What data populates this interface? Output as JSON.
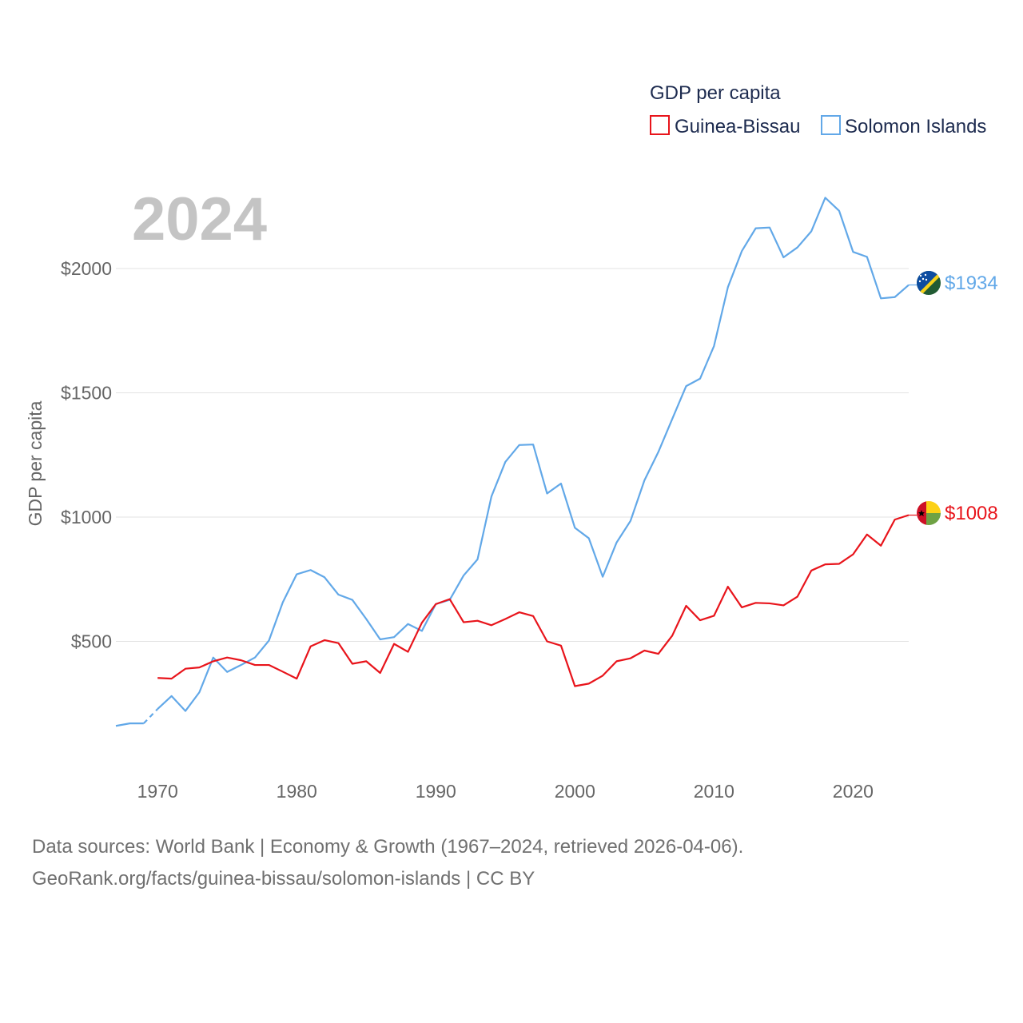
{
  "chart_data": {
    "type": "line",
    "year_overlay": "2024",
    "legend": {
      "title": "GDP per capita",
      "entries": [
        "Guinea-Bissau",
        "Solomon Islands"
      ]
    },
    "ylabel": "GDP per capita",
    "xlabel": "",
    "xlim": [
      1967,
      2024
    ],
    "ylim": [
      0,
      2350
    ],
    "x_ticks": [
      1970,
      1980,
      1990,
      2000,
      2010,
      2020
    ],
    "y_ticks": [
      500,
      1000,
      1500,
      2000
    ],
    "y_tick_labels": [
      "$500",
      "$1000",
      "$1500",
      "$2000"
    ],
    "grid": true,
    "series": [
      {
        "name": "Guinea-Bissau",
        "color": "#e8141b",
        "end_label": "$1008",
        "flag": "guinea-bissau-flag",
        "x": [
          1970,
          1971,
          1972,
          1973,
          1974,
          1975,
          1976,
          1977,
          1978,
          1979,
          1980,
          1981,
          1982,
          1983,
          1984,
          1985,
          1986,
          1987,
          1988,
          1989,
          1990,
          1991,
          1992,
          1993,
          1994,
          1995,
          1996,
          1997,
          1998,
          1999,
          2000,
          2001,
          2002,
          2003,
          2004,
          2005,
          2006,
          2007,
          2008,
          2009,
          2010,
          2011,
          2012,
          2013,
          2014,
          2015,
          2016,
          2017,
          2018,
          2019,
          2020,
          2021,
          2022,
          2023,
          2024
        ],
        "values": [
          353,
          350,
          390,
          395,
          420,
          435,
          424,
          405,
          405,
          378,
          350,
          480,
          505,
          493,
          410,
          420,
          373,
          490,
          458,
          575,
          650,
          670,
          577,
          583,
          565,
          590,
          617,
          602,
          500,
          483,
          320,
          330,
          362,
          420,
          432,
          463,
          450,
          523,
          643,
          585,
          603,
          720,
          637,
          655,
          653,
          645,
          680,
          785,
          810,
          812,
          850,
          930,
          885,
          990,
          1008
        ]
      },
      {
        "name": "Solomon Islands",
        "color": "#62a8e8",
        "end_label": "$1934",
        "flag": "solomon-islands-flag",
        "gap_after": 1969,
        "x": [
          1967,
          1968,
          1969,
          1970,
          1971,
          1972,
          1973,
          1974,
          1975,
          1976,
          1977,
          1978,
          1979,
          1980,
          1981,
          1982,
          1983,
          1984,
          1985,
          1986,
          1987,
          1988,
          1989,
          1990,
          1991,
          1992,
          1993,
          1994,
          1995,
          1996,
          1997,
          1998,
          1999,
          2000,
          2001,
          2002,
          2003,
          2004,
          2005,
          2006,
          2007,
          2008,
          2009,
          2010,
          2011,
          2012,
          2013,
          2014,
          2015,
          2016,
          2017,
          2018,
          2019,
          2020,
          2021,
          2022,
          2023,
          2024
        ],
        "values": [
          160,
          170,
          170,
          228,
          280,
          220,
          295,
          435,
          377,
          405,
          435,
          503,
          657,
          770,
          787,
          758,
          688,
          667,
          590,
          508,
          517,
          570,
          542,
          650,
          667,
          765,
          830,
          1083,
          1222,
          1290,
          1292,
          1095,
          1135,
          957,
          915,
          760,
          898,
          985,
          1148,
          1262,
          1395,
          1527,
          1557,
          1688,
          1925,
          2070,
          2162,
          2165,
          2045,
          2085,
          2150,
          2285,
          2232,
          2067,
          2047,
          1880,
          1885,
          1934
        ]
      }
    ]
  },
  "source": {
    "line1": "Data sources: World Bank | Economy & Growth (1967–2024, retrieved 2026-04-06).",
    "line2": "GeoRank.org/facts/guinea-bissau/solomon-islands | CC BY"
  }
}
